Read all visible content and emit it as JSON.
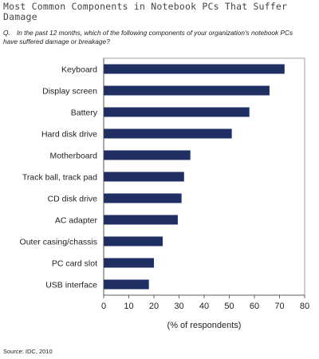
{
  "header": {
    "title": "Most Common Components in Notebook PCs That Suffer Damage",
    "question_label": "Q.",
    "question_text": "In the past 12 months, which of the following components of your organization's notebook PCs have suffered damage or breakage?"
  },
  "footer": {
    "source": "Source: IDC, 2010"
  },
  "colors": {
    "bar": "#1f2f63",
    "axis": "#444444",
    "border": "#888888"
  },
  "chart_data": {
    "type": "bar",
    "orientation": "horizontal",
    "title": "Most Common Components in Notebook PCs That Suffer Damage",
    "xlabel": "(% of respondents)",
    "ylabel": "",
    "xlim": [
      0,
      80
    ],
    "xticks": [
      0,
      10,
      20,
      30,
      40,
      50,
      60,
      70,
      80
    ],
    "grid": false,
    "legend": "none",
    "categories": [
      "Keyboard",
      "Display screen",
      "Battery",
      "Hard disk drive",
      "Motherboard",
      "Track ball, track pad",
      "CD disk drive",
      "AC adapter",
      "Outer casing/chassis",
      "PC card slot",
      "USB interface"
    ],
    "values": [
      72,
      66,
      58,
      51,
      34.5,
      32,
      31,
      29.5,
      23.5,
      20,
      18
    ]
  }
}
